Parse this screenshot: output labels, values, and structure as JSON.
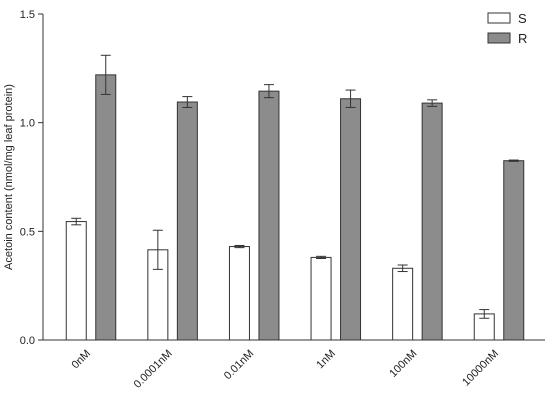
{
  "chart_data": {
    "type": "bar",
    "y_label": "Acetoin content (nmol/mg leaf protein)",
    "categories": [
      "0nM",
      "0.0001nM",
      "0.01nM",
      "1nM",
      "100nM",
      "10000nM"
    ],
    "series": [
      {
        "name": "S",
        "color": "#ffffff",
        "values": [
          0.545,
          0.415,
          0.43,
          0.38,
          0.33,
          0.12
        ],
        "errors": [
          0.015,
          0.09,
          0.005,
          0.005,
          0.015,
          0.02
        ]
      },
      {
        "name": "R",
        "color": "#8c8c8c",
        "values": [
          1.22,
          1.095,
          1.145,
          1.11,
          1.09,
          0.825
        ],
        "errors": [
          0.09,
          0.025,
          0.03,
          0.04,
          0.015,
          0.003
        ]
      }
    ],
    "ylim": [
      0,
      1.5
    ],
    "yticks": [
      {
        "value": 0,
        "label": "0.0"
      },
      0.5,
      {
        "value": 1,
        "label": "1.0"
      },
      {
        "value": 1.5,
        "label": "1.5"
      }
    ],
    "legend": "top-right"
  }
}
